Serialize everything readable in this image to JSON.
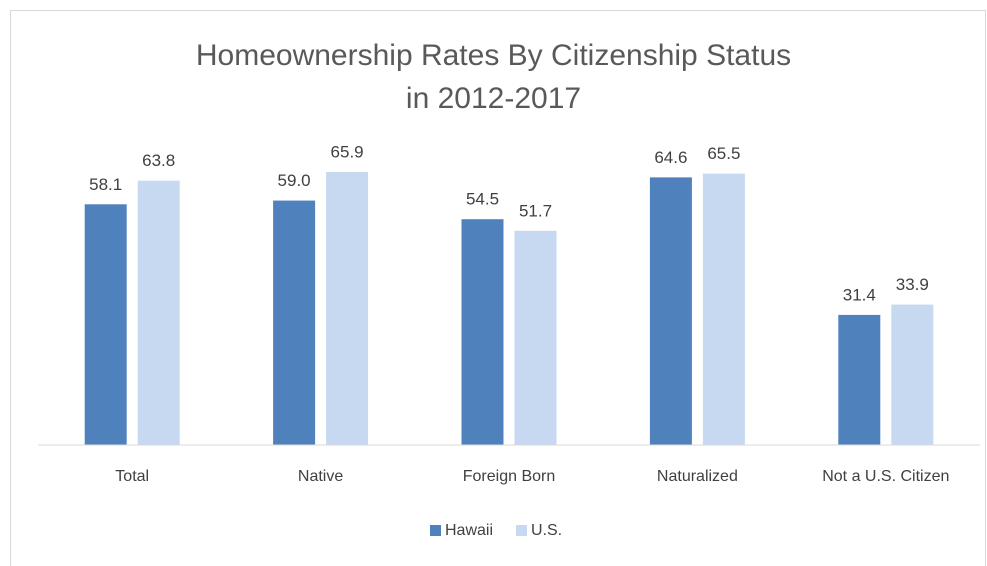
{
  "chart_data": {
    "type": "bar",
    "title": "Homeownership Rates By Citizenship Status in 2012-2017",
    "categories": [
      "Total",
      "Native",
      "Foreign Born",
      "Naturalized",
      "Not a U.S. Citizen"
    ],
    "series": [
      {
        "name": "Hawaii",
        "color": "#4f81bd",
        "values": [
          58.1,
          59.0,
          54.5,
          64.6,
          31.4
        ],
        "value_labels": [
          "58.1",
          "59.0",
          "54.5",
          "64.6",
          "31.4"
        ]
      },
      {
        "name": "U.S.",
        "color": "#c6d9f1",
        "values": [
          63.8,
          65.9,
          51.7,
          65.5,
          33.9
        ],
        "value_labels": [
          "63.8",
          "65.9",
          "51.7",
          "65.5",
          "33.9"
        ]
      }
    ],
    "ylim": [
      0,
      70
    ],
    "legend": "bottom"
  }
}
